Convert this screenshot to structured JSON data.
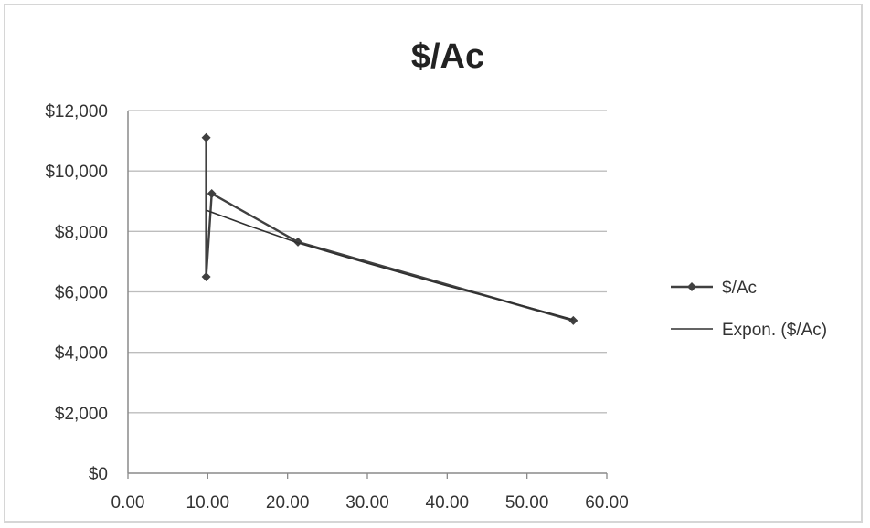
{
  "chart_data": {
    "type": "scatter",
    "title": "$/Ac",
    "xlabel": "",
    "ylabel": "",
    "xlim": [
      0,
      60
    ],
    "ylim": [
      0,
      12000
    ],
    "x_ticks": [
      0,
      10,
      20,
      30,
      40,
      50,
      60
    ],
    "x_tick_labels": [
      "0.00",
      "10.00",
      "20.00",
      "30.00",
      "40.00",
      "50.00",
      "60.00"
    ],
    "y_ticks": [
      0,
      2000,
      4000,
      6000,
      8000,
      10000,
      12000
    ],
    "y_tick_labels": [
      "$0",
      "$2,000",
      "$4,000",
      "$6,000",
      "$8,000",
      "$10,000",
      "$12,000"
    ],
    "grid": "horizontal",
    "legend_position": "right",
    "series": [
      {
        "name": "$/Ac",
        "style": "line-with-markers",
        "color": "#404040",
        "points": [
          {
            "x": 9.8,
            "y": 11100
          },
          {
            "x": 9.8,
            "y": 6500
          },
          {
            "x": 10.5,
            "y": 9250
          },
          {
            "x": 21.3,
            "y": 7650
          },
          {
            "x": 55.8,
            "y": 5050
          }
        ]
      },
      {
        "name": "Expon. ($/Ac)",
        "style": "trendline",
        "color": "#303030",
        "points": [
          {
            "x": 9.8,
            "y": 8700
          },
          {
            "x": 15,
            "y": 8200
          },
          {
            "x": 21.3,
            "y": 7620
          },
          {
            "x": 30,
            "y": 6950
          },
          {
            "x": 40,
            "y": 6200
          },
          {
            "x": 50,
            "y": 5500
          },
          {
            "x": 55.8,
            "y": 5080
          }
        ]
      }
    ]
  }
}
